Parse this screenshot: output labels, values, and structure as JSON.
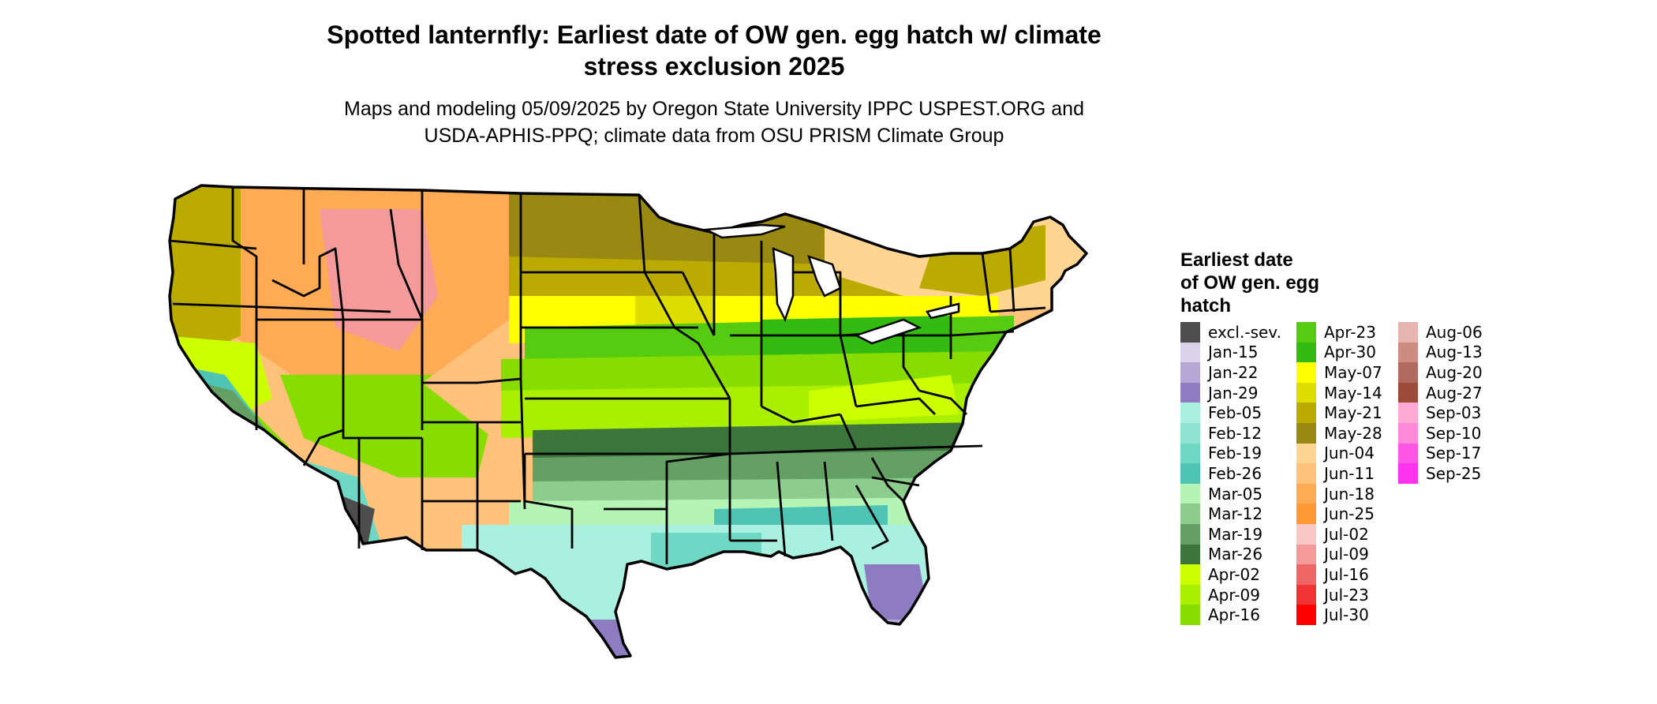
{
  "title_line1": "Spotted lanternfly: Earliest date of OW gen. egg hatch w/ climate",
  "title_line2": "stress exclusion 2025",
  "subtitle_line1": "Maps and modeling 05/09/2025 by Oregon State University IPPC USPEST.ORG and",
  "subtitle_line2": "USDA-APHIS-PPQ; climate data from OSU PRISM Climate Group",
  "legend": {
    "title_line1": "Earliest date",
    "title_line2": "of OW gen. egg",
    "title_line3": "hatch",
    "columns": [
      [
        {
          "label": "excl.-sev.",
          "color": "#4d4d4d"
        },
        {
          "label": "Jan-15",
          "color": "#d9d2e9"
        },
        {
          "label": "Jan-22",
          "color": "#b4a7d6"
        },
        {
          "label": "Jan-29",
          "color": "#8e7cc3"
        },
        {
          "label": "Feb-05",
          "color": "#aaf0e0"
        },
        {
          "label": "Feb-12",
          "color": "#8ee4d0"
        },
        {
          "label": "Feb-19",
          "color": "#6fd8c4"
        },
        {
          "label": "Feb-26",
          "color": "#4fc4b4"
        },
        {
          "label": "Mar-05",
          "color": "#b4f4b4"
        },
        {
          "label": "Mar-12",
          "color": "#8ccc8c"
        },
        {
          "label": "Mar-19",
          "color": "#64a064"
        },
        {
          "label": "Mar-26",
          "color": "#3c763c"
        },
        {
          "label": "Apr-02",
          "color": "#ccff00"
        },
        {
          "label": "Apr-09",
          "color": "#aaee00"
        },
        {
          "label": "Apr-16",
          "color": "#88dd00"
        }
      ],
      [
        {
          "label": "Apr-23",
          "color": "#55cc11"
        },
        {
          "label": "Apr-30",
          "color": "#33bb11"
        },
        {
          "label": "May-07",
          "color": "#ffff00"
        },
        {
          "label": "May-14",
          "color": "#dddd00"
        },
        {
          "label": "May-21",
          "color": "#bbaa00"
        },
        {
          "label": "May-28",
          "color": "#998811"
        },
        {
          "label": "Jun-04",
          "color": "#ffd591"
        },
        {
          "label": "Jun-11",
          "color": "#ffc27a"
        },
        {
          "label": "Jun-18",
          "color": "#ffaa55"
        },
        {
          "label": "Jun-25",
          "color": "#ff9933"
        },
        {
          "label": "Jul-02",
          "color": "#f8c8c8"
        },
        {
          "label": "Jul-09",
          "color": "#f49a9a"
        },
        {
          "label": "Jul-16",
          "color": "#f06666"
        },
        {
          "label": "Jul-23",
          "color": "#f03333"
        },
        {
          "label": "Jul-30",
          "color": "#ff0000"
        }
      ],
      [
        {
          "label": "Aug-06",
          "color": "#e6b4ae"
        },
        {
          "label": "Aug-13",
          "color": "#cc8c82"
        },
        {
          "label": "Aug-20",
          "color": "#b06a5e"
        },
        {
          "label": "Aug-27",
          "color": "#9c4a3a"
        },
        {
          "label": "Sep-03",
          "color": "#ffaad4"
        },
        {
          "label": "Sep-10",
          "color": "#ff88d8"
        },
        {
          "label": "Sep-17",
          "color": "#ff55e4"
        },
        {
          "label": "Sep-25",
          "color": "#ff33ee"
        }
      ]
    ]
  }
}
